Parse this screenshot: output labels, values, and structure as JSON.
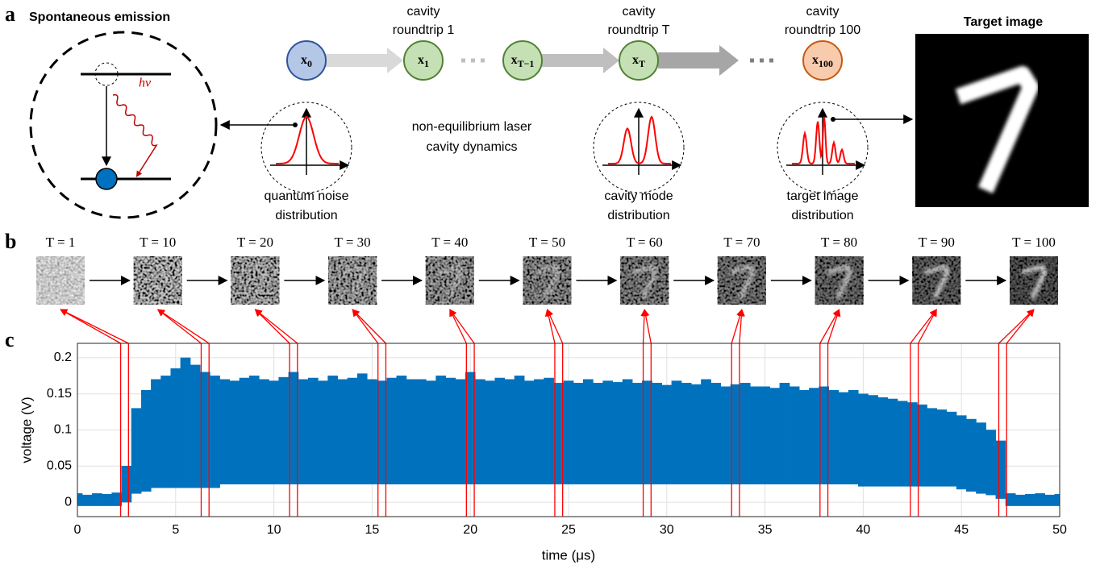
{
  "panel_labels": [
    "a",
    "b",
    "c"
  ],
  "panel_a": {
    "title": "Spontaneous emission",
    "photon": "hν",
    "nodes": [
      {
        "label": "x",
        "sub": "0"
      },
      {
        "label": "x",
        "sub": "1",
        "top_label": [
          "cavity",
          "roundtrip 1"
        ]
      },
      {
        "label": "x",
        "sub": "T−1"
      },
      {
        "label": "x",
        "sub": "T",
        "top_label": [
          "cavity",
          "roundtrip T"
        ]
      },
      {
        "label": "x",
        "sub": "100",
        "top_label": [
          "cavity",
          "roundtrip 100"
        ]
      }
    ],
    "dynamics": [
      "non-equilibrium laser",
      "cavity dynamics"
    ],
    "distributions": [
      [
        "quantum noise",
        "distribution"
      ],
      [
        "cavity mode",
        "distribution"
      ],
      [
        "target image",
        "distribution"
      ]
    ],
    "target_title": "Target image"
  },
  "panel_b": {
    "frames": [
      "T = 1",
      "T = 10",
      "T = 20",
      "T = 30",
      "T = 40",
      "T = 50",
      "T = 60",
      "T = 70",
      "T = 80",
      "T = 90",
      "T = 100"
    ]
  },
  "chart_data": {
    "type": "band",
    "xlabel": "time (μs)",
    "ylabel": "voltage (V)",
    "x": [
      0,
      0.5,
      1,
      1.5,
      2,
      2.5,
      3,
      3.5,
      4,
      4.5,
      5,
      5.5,
      6,
      6.5,
      7,
      7.5,
      8,
      8.5,
      9,
      9.5,
      10,
      10.5,
      11,
      11.5,
      12,
      12.5,
      13,
      13.5,
      14,
      14.5,
      15,
      15.5,
      16,
      16.5,
      17,
      17.5,
      18,
      18.5,
      19,
      19.5,
      20,
      20.5,
      21,
      21.5,
      22,
      22.5,
      23,
      23.5,
      24,
      24.5,
      25,
      25.5,
      26,
      26.5,
      27,
      27.5,
      28,
      28.5,
      29,
      29.5,
      30,
      30.5,
      31,
      31.5,
      32,
      32.5,
      33,
      33.5,
      34,
      34.5,
      35,
      35.5,
      36,
      36.5,
      37,
      37.5,
      38,
      38.5,
      39,
      39.5,
      40,
      40.5,
      41,
      41.5,
      42,
      42.5,
      43,
      43.5,
      44,
      44.5,
      45,
      45.5,
      46,
      46.5,
      47,
      47.5,
      48,
      48.5,
      49,
      49.5,
      50
    ],
    "series": [
      {
        "color": "#0072bd",
        "values": [
          0.012,
          0.01,
          0.012,
          0.011,
          0.013,
          0.05,
          0.13,
          0.155,
          0.17,
          0.175,
          0.185,
          0.2,
          0.19,
          0.18,
          0.175,
          0.17,
          0.168,
          0.172,
          0.175,
          0.17,
          0.168,
          0.173,
          0.18,
          0.17,
          0.172,
          0.168,
          0.175,
          0.17,
          0.172,
          0.178,
          0.17,
          0.168,
          0.172,
          0.175,
          0.17,
          0.17,
          0.168,
          0.175,
          0.172,
          0.17,
          0.18,
          0.17,
          0.168,
          0.172,
          0.17,
          0.175,
          0.168,
          0.17,
          0.172,
          0.165,
          0.168,
          0.165,
          0.17,
          0.165,
          0.168,
          0.166,
          0.17,
          0.165,
          0.168,
          0.165,
          0.162,
          0.168,
          0.165,
          0.163,
          0.17,
          0.165,
          0.16,
          0.163,
          0.165,
          0.16,
          0.16,
          0.158,
          0.165,
          0.16,
          0.155,
          0.158,
          0.16,
          0.155,
          0.152,
          0.155,
          0.15,
          0.148,
          0.145,
          0.143,
          0.14,
          0.138,
          0.135,
          0.13,
          0.128,
          0.125,
          0.12,
          0.115,
          0.11,
          0.1,
          0.085,
          0.012,
          0.01,
          0.011,
          0.012,
          0.01,
          0.011
        ]
      },
      {
        "color": "#0072bd",
        "values": [
          -0.005,
          -0.005,
          -0.005,
          -0.005,
          -0.005,
          0.0,
          0.012,
          0.015,
          0.02,
          0.02,
          0.02,
          0.02,
          0.02,
          0.02,
          0.02,
          0.025,
          0.025,
          0.025,
          0.025,
          0.025,
          0.025,
          0.025,
          0.025,
          0.025,
          0.025,
          0.025,
          0.025,
          0.025,
          0.025,
          0.025,
          0.025,
          0.025,
          0.025,
          0.025,
          0.025,
          0.025,
          0.025,
          0.025,
          0.025,
          0.025,
          0.025,
          0.025,
          0.025,
          0.025,
          0.025,
          0.025,
          0.025,
          0.025,
          0.025,
          0.025,
          0.025,
          0.025,
          0.025,
          0.025,
          0.025,
          0.025,
          0.025,
          0.025,
          0.025,
          0.025,
          0.025,
          0.025,
          0.025,
          0.025,
          0.025,
          0.025,
          0.025,
          0.025,
          0.025,
          0.025,
          0.025,
          0.025,
          0.025,
          0.025,
          0.025,
          0.025,
          0.025,
          0.025,
          0.025,
          0.025,
          0.022,
          0.022,
          0.022,
          0.022,
          0.022,
          0.022,
          0.022,
          0.022,
          0.022,
          0.022,
          0.018,
          0.015,
          0.012,
          0.01,
          0.005,
          -0.005,
          -0.005,
          -0.005,
          -0.005,
          -0.005,
          -0.005
        ]
      }
    ],
    "windows": [
      [
        2.2,
        2.6
      ],
      [
        6.3,
        6.7
      ],
      [
        10.8,
        11.2
      ],
      [
        15.3,
        15.7
      ],
      [
        19.8,
        20.2
      ],
      [
        24.3,
        24.7
      ],
      [
        28.8,
        29.2
      ],
      [
        33.3,
        33.7
      ],
      [
        37.8,
        38.2
      ],
      [
        42.4,
        42.8
      ],
      [
        46.9,
        47.3
      ]
    ],
    "window_color": "#ff0000",
    "xlim": [
      0,
      50
    ],
    "xticks": [
      0,
      5,
      10,
      15,
      20,
      25,
      30,
      35,
      40,
      45,
      50
    ],
    "ylim": [
      -0.02,
      0.22
    ],
    "yticks": [
      0,
      0.05,
      0.1,
      0.15,
      0.2
    ],
    "grid": true
  }
}
